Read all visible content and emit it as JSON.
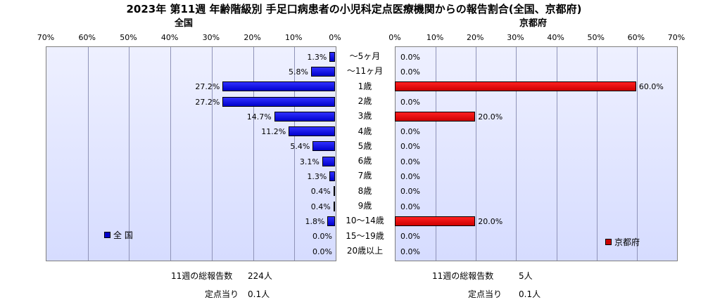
{
  "title": "2023年 第11週  年齢階級別 手足口病患者の小児科定点医療機関からの報告割合(全国、京都府)",
  "chart_data": [
    {
      "type": "bar",
      "orientation": "horizontal",
      "direction": "right-to-left",
      "title": "全国",
      "series": [
        {
          "name": "全 国",
          "values": [
            1.3,
            5.8,
            27.2,
            27.2,
            14.7,
            11.2,
            5.4,
            3.1,
            1.3,
            0.4,
            0.4,
            1.8,
            0.0,
            0.0
          ]
        }
      ],
      "value_labels": [
        "1.3%",
        "5.8%",
        "27.2%",
        "27.2%",
        "14.7%",
        "11.2%",
        "5.4%",
        "3.1%",
        "1.3%",
        "0.4%",
        "0.4%",
        "1.8%",
        "0.0%",
        "0.0%"
      ],
      "xlim": [
        0,
        70
      ],
      "xticks": [
        "70%",
        "60%",
        "50%",
        "40%",
        "30%",
        "20%",
        "10%",
        "0%"
      ],
      "color": "#0000cc",
      "legend_position": "bottom-left",
      "grid": true
    },
    {
      "type": "bar",
      "orientation": "horizontal",
      "direction": "left-to-right",
      "title": "京都府",
      "series": [
        {
          "name": "京都府",
          "values": [
            0.0,
            0.0,
            60.0,
            0.0,
            20.0,
            0.0,
            0.0,
            0.0,
            0.0,
            0.0,
            0.0,
            20.0,
            0.0,
            0.0
          ]
        }
      ],
      "value_labels": [
        "0.0%",
        "0.0%",
        "60.0%",
        "0.0%",
        "20.0%",
        "0.0%",
        "0.0%",
        "0.0%",
        "0.0%",
        "0.0%",
        "0.0%",
        "20.0%",
        "0.0%",
        "0.0%"
      ],
      "xlim": [
        0,
        70
      ],
      "xticks": [
        "0%",
        "10%",
        "20%",
        "30%",
        "40%",
        "50%",
        "60%",
        "70%"
      ],
      "color": "#cc0000",
      "legend_position": "bottom-right",
      "grid": true
    }
  ],
  "categories": [
    "～5ヶ月",
    "～11ヶ月",
    "1歳",
    "2歳",
    "3歳",
    "4歳",
    "5歳",
    "6歳",
    "7歳",
    "8歳",
    "9歳",
    "10～14歳",
    "15～19歳",
    "20歳以上"
  ],
  "footer": {
    "left": {
      "total_label": "11週の総報告数",
      "total_value": "224人",
      "per_label": "定点当り",
      "per_value": "0.1人"
    },
    "right": {
      "total_label": "11週の総報告数",
      "total_value": "5人",
      "per_label": "定点当り",
      "per_value": "0.1人"
    }
  }
}
